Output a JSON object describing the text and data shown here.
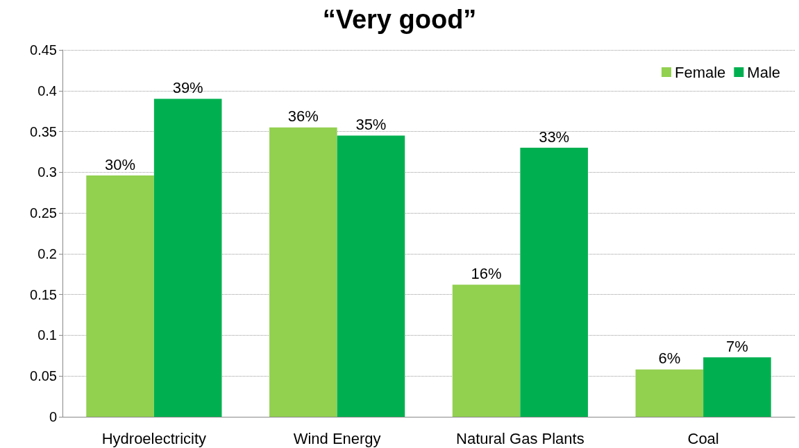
{
  "chart_data": {
    "type": "bar",
    "title": "“Very good”",
    "categories": [
      "Hydroelectricity",
      "Wind Energy",
      "Natural Gas Plants",
      "Coal"
    ],
    "series": [
      {
        "name": "Female",
        "color": "#92d050",
        "values": [
          0.296,
          0.355,
          0.162,
          0.058
        ],
        "value_labels": [
          "30%",
          "36%",
          "16%",
          "6%"
        ]
      },
      {
        "name": "Male",
        "color": "#00b050",
        "values": [
          0.39,
          0.345,
          0.33,
          0.073
        ],
        "value_labels": [
          "39%",
          "35%",
          "33%",
          "7%"
        ]
      }
    ],
    "ylim": [
      0,
      0.45
    ],
    "yticks": [
      0,
      0.05,
      0.1,
      0.15,
      0.2,
      0.25,
      0.3,
      0.35,
      0.4,
      0.45
    ],
    "grid": "y",
    "legend": "top right"
  }
}
